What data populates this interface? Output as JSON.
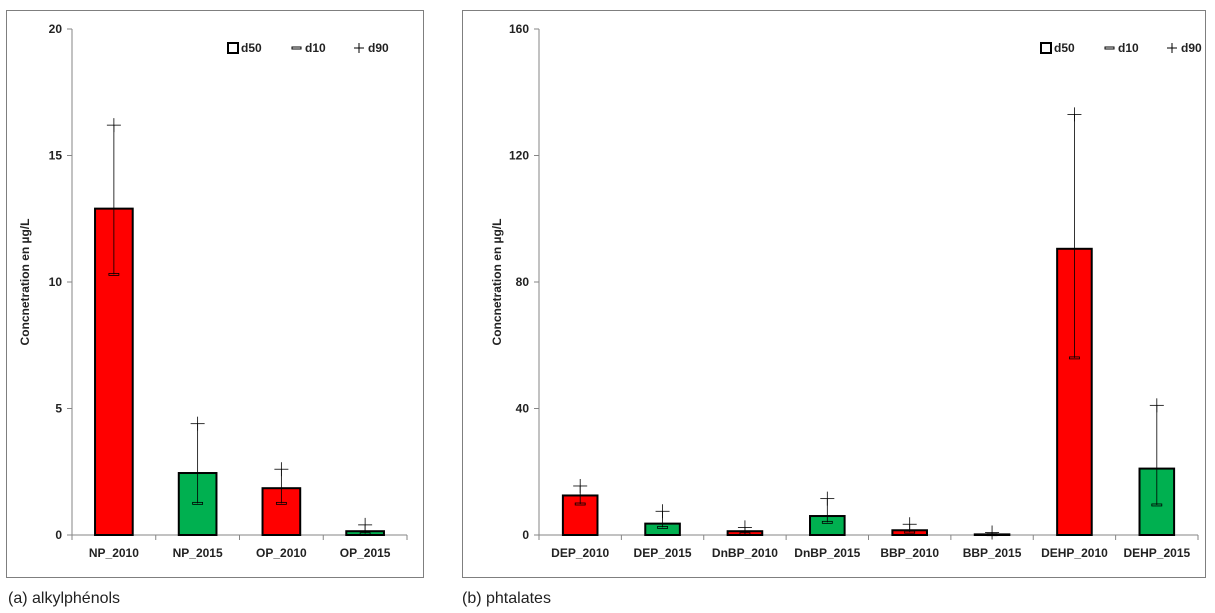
{
  "chart_data": [
    {
      "type": "bar",
      "caption": "(a) alkylphénols",
      "ylabel": "Concnetration en µg/L",
      "ylim": [
        0,
        20
      ],
      "yticks": [
        0,
        5,
        10,
        15,
        20
      ],
      "legend": {
        "placement": "top-right",
        "entries": [
          "d50",
          "d10",
          "d90"
        ]
      },
      "colors": {
        "2010": "#ff0000",
        "2015": "#00b050"
      },
      "categories": [
        "NP_2010",
        "NP_2015",
        "OP_2010",
        "OP_2015"
      ],
      "series": [
        {
          "name": "d50",
          "values": [
            12.9,
            2.45,
            1.85,
            0.15
          ]
        },
        {
          "name": "d10",
          "values": [
            10.3,
            1.25,
            1.25,
            0.05
          ]
        },
        {
          "name": "d90",
          "values": [
            16.2,
            4.4,
            2.6,
            0.4
          ]
        }
      ]
    },
    {
      "type": "bar",
      "caption": "(b) phtalates",
      "ylabel": "Concnetration en µg/L",
      "ylim": [
        0,
        160
      ],
      "yticks": [
        0,
        40,
        80,
        120,
        160
      ],
      "legend": {
        "placement": "top-right",
        "entries": [
          "d50",
          "d10",
          "d90"
        ]
      },
      "colors": {
        "2010": "#ff0000",
        "2015": "#00b050"
      },
      "categories": [
        "DEP_2010",
        "DEP_2015",
        "DnBP_2010",
        "DnBP_2015",
        "BBP_2010",
        "BBP_2015",
        "DEHP_2010",
        "DEHP_2015"
      ],
      "series": [
        {
          "name": "d50",
          "values": [
            12.5,
            3.6,
            1.2,
            6.0,
            1.5,
            0.2,
            90.5,
            21.0
          ]
        },
        {
          "name": "d10",
          "values": [
            9.8,
            2.4,
            0.4,
            4.0,
            0.9,
            0.1,
            56.0,
            9.5
          ]
        },
        {
          "name": "d90",
          "values": [
            15.5,
            7.5,
            2.4,
            11.5,
            3.4,
            0.8,
            133.0,
            41.0
          ]
        }
      ]
    }
  ]
}
